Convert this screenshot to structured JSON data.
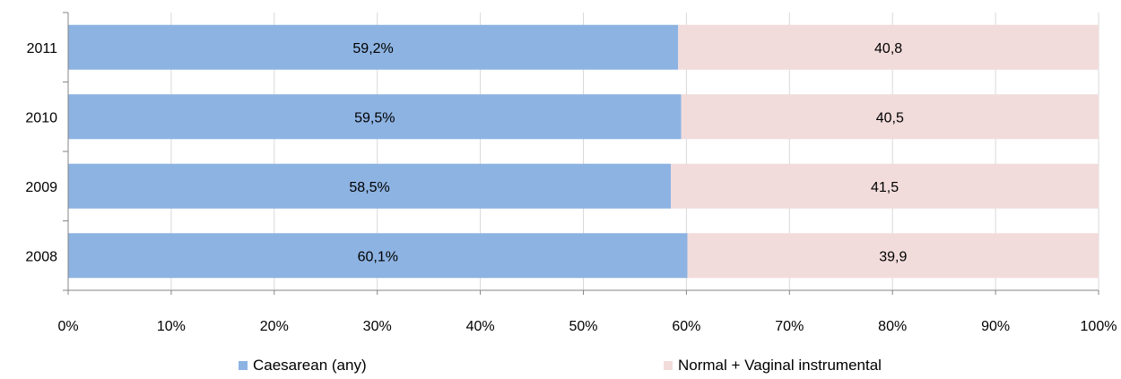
{
  "chart_data": {
    "type": "bar",
    "orientation": "horizontal",
    "stacked": "100%",
    "categories": [
      "2011",
      "2010",
      "2009",
      "2008"
    ],
    "series": [
      {
        "name": "Caesarean (any)",
        "values": [
          59.2,
          59.5,
          58.5,
          60.1
        ],
        "labels": [
          "59,2%",
          "59,5%",
          "58,5%",
          "60,1%"
        ],
        "color": "#8DB3E2"
      },
      {
        "name": "Normal + Vaginal instrumental",
        "values": [
          40.8,
          40.5,
          41.5,
          39.9
        ],
        "labels": [
          "40,8",
          "40,5",
          "41,5",
          "39,9"
        ],
        "color": "#F2DCDB"
      }
    ],
    "xlim": [
      0,
      100
    ],
    "xticks": [
      "0%",
      "10%",
      "20%",
      "30%",
      "40%",
      "50%",
      "60%",
      "70%",
      "80%",
      "90%",
      "100%"
    ],
    "grid": true,
    "legend_position": "bottom"
  }
}
